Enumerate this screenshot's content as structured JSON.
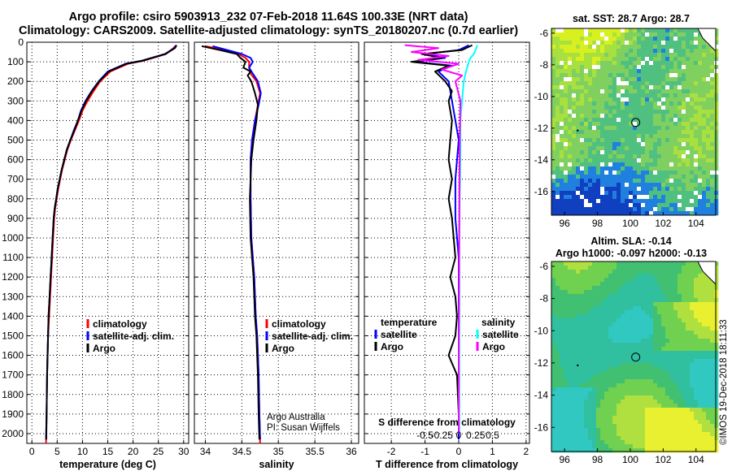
{
  "header": {
    "line1": "Argo profile: csiro 5903913_232 07-Feb-2018 11.64S 100.33E (NRT data)",
    "line2": "Climatology: CARS2009. Satellite-adjusted climatology: synTS_20180207.nc (0.7d earlier)"
  },
  "colors": {
    "argo": "#000000",
    "climatology": "#ff0000",
    "satellite": "#0000ff",
    "sat_salinity": "#00ffff",
    "argo_salinity": "#ff00ff"
  },
  "chart_data": [
    {
      "type": "line",
      "id": "temperature",
      "xlabel": "temperature (deg C)",
      "ylabel": "",
      "xlim": [
        -1,
        31
      ],
      "ylim": [
        2050,
        0
      ],
      "xticks": [
        0,
        5,
        10,
        15,
        20,
        25,
        30
      ],
      "yticks": [
        0,
        100,
        200,
        300,
        400,
        500,
        600,
        700,
        800,
        900,
        1000,
        1100,
        1200,
        1300,
        1400,
        1500,
        1600,
        1700,
        1800,
        1900,
        2000
      ],
      "grid": true,
      "legend": {
        "position": "lower-center",
        "entries": [
          "climatology",
          "satellite-adj. clim.",
          "Argo"
        ]
      },
      "series": [
        {
          "name": "climatology",
          "color": "#ff0000",
          "x": [
            28.3,
            28.0,
            26.5,
            22.0,
            19.0,
            15.5,
            13.5,
            12.2,
            11.0,
            10.0,
            9.3,
            8.5,
            7.7,
            7.0,
            6.5,
            6.0,
            5.6,
            5.2,
            4.9,
            4.6,
            4.4,
            4.2,
            4.0,
            3.8,
            3.6,
            3.4,
            3.2,
            3.0,
            2.9,
            2.8
          ],
          "y": [
            20,
            30,
            60,
            95,
            110,
            150,
            200,
            250,
            300,
            350,
            400,
            450,
            500,
            550,
            600,
            650,
            700,
            750,
            800,
            850,
            900,
            1000,
            1100,
            1200,
            1300,
            1400,
            1500,
            1700,
            1900,
            2050
          ]
        },
        {
          "name": "satellite-adj. clim.",
          "color": "#0000ff",
          "x": [
            28.5,
            28.2,
            26.3,
            21.6,
            18.5,
            15.0,
            13.2,
            11.8,
            10.6,
            9.7,
            9.1,
            8.3,
            7.6,
            6.9,
            6.4,
            5.9,
            5.5,
            5.1,
            4.8,
            4.5,
            4.3,
            4.1,
            3.9,
            3.7,
            3.5,
            3.3,
            3.2,
            3.0,
            2.9,
            2.8
          ],
          "y": [
            15,
            30,
            60,
            95,
            110,
            150,
            200,
            250,
            300,
            350,
            400,
            450,
            500,
            550,
            600,
            650,
            700,
            750,
            800,
            850,
            900,
            1000,
            1100,
            1200,
            1300,
            1400,
            1500,
            1700,
            1900,
            2030
          ]
        },
        {
          "name": "Argo",
          "color": "#000000",
          "x": [
            28.6,
            28.3,
            26.4,
            21.8,
            18.7,
            15.2,
            13.3,
            11.9,
            10.7,
            9.8,
            9.1,
            8.4,
            7.6,
            6.9,
            6.4,
            5.9,
            5.5,
            5.1,
            4.8,
            4.5,
            4.3,
            4.1,
            3.9,
            3.7,
            3.5,
            3.3,
            3.2,
            3.0,
            2.9,
            2.85
          ],
          "y": [
            15,
            30,
            60,
            95,
            110,
            150,
            200,
            250,
            300,
            350,
            400,
            450,
            500,
            550,
            600,
            650,
            700,
            750,
            800,
            850,
            900,
            1000,
            1100,
            1200,
            1300,
            1400,
            1500,
            1700,
            1900,
            2030
          ]
        }
      ]
    },
    {
      "type": "line",
      "id": "salinity",
      "xlabel": "salinity",
      "xlim": [
        33.85,
        36.1
      ],
      "ylim": [
        2050,
        0
      ],
      "xticks": [
        34,
        34.5,
        35,
        35.5,
        36
      ],
      "grid": true,
      "legend": {
        "position": "lower-right",
        "entries": [
          "climatology",
          "satellite-adj. clim.",
          "Argo"
        ]
      },
      "annotation": [
        "Argo Australia",
        "PI: Susan Wijffels"
      ],
      "series": [
        {
          "name": "climatology",
          "color": "#ff0000",
          "x": [
            34.0,
            34.28,
            34.45,
            34.55,
            34.6,
            34.6,
            34.62,
            34.7,
            34.75,
            34.72,
            34.68,
            34.64,
            34.62,
            34.62,
            34.63,
            34.65,
            34.67,
            34.69,
            34.71,
            34.72,
            34.73,
            34.74,
            34.75
          ],
          "y": [
            20,
            40,
            60,
            80,
            100,
            130,
            160,
            200,
            260,
            320,
            400,
            500,
            600,
            800,
            1000,
            1100,
            1200,
            1400,
            1500,
            1600,
            1700,
            1900,
            2050
          ]
        },
        {
          "name": "satellite-adj. clim.",
          "color": "#0000ff",
          "x": [
            34.1,
            34.3,
            34.5,
            34.62,
            34.65,
            34.6,
            34.65,
            34.72,
            34.76,
            34.73,
            34.68,
            34.64,
            34.62,
            34.62,
            34.63,
            34.65,
            34.67,
            34.69,
            34.71,
            34.72,
            34.73,
            34.74,
            34.75
          ],
          "y": [
            20,
            40,
            60,
            80,
            100,
            130,
            160,
            200,
            260,
            320,
            400,
            500,
            600,
            800,
            1000,
            1100,
            1200,
            1400,
            1500,
            1600,
            1700,
            1900,
            2030
          ]
        },
        {
          "name": "Argo",
          "color": "#000000",
          "x": [
            33.95,
            34.2,
            34.43,
            34.48,
            34.55,
            34.52,
            34.62,
            34.58,
            34.63,
            34.68,
            34.72,
            34.7,
            34.66,
            34.63,
            34.61,
            34.62,
            34.64,
            34.66,
            34.68,
            34.7,
            34.72,
            34.73,
            34.74
          ],
          "y": [
            20,
            40,
            60,
            80,
            100,
            130,
            150,
            170,
            200,
            260,
            320,
            400,
            500,
            600,
            800,
            1000,
            1100,
            1200,
            1400,
            1500,
            1700,
            1900,
            2030
          ]
        }
      ]
    },
    {
      "type": "line",
      "id": "difference",
      "xlabel": "T difference from climatology",
      "xlabel_top": "S difference from climatology",
      "xlim": [
        -2.8,
        2.1
      ],
      "ylim": [
        2050,
        0
      ],
      "xticks": [
        -2,
        -1,
        0,
        1,
        2
      ],
      "xticks_top": [
        -0.5,
        -0.25,
        0,
        0.25,
        0.5
      ],
      "xticklabels_top": [
        "-0.5",
        "-0.25",
        "0",
        "0.25",
        "0.5"
      ],
      "grid": true,
      "legend": {
        "left_title": "temperature",
        "left_entries": [
          "satellite",
          "Argo"
        ],
        "right_title": "salinity",
        "right_entries": [
          "satellite",
          "Argo"
        ]
      },
      "series": [
        {
          "name": "satellite",
          "group": "temperature",
          "color": "#0000ff",
          "x": [
            0.3,
            0.0,
            -1.0,
            -0.4,
            -1.3,
            -0.2,
            -0.6,
            -0.3,
            -0.2,
            -0.1,
            0.0,
            -0.1,
            -0.1,
            0.0,
            0.0,
            0.0,
            0.0,
            0.0,
            0.0,
            0.0
          ],
          "y": [
            15,
            40,
            60,
            80,
            100,
            120,
            150,
            200,
            300,
            400,
            500,
            700,
            900,
            1100,
            1300,
            1500,
            1700,
            1800,
            1900,
            2030
          ]
        },
        {
          "name": "Argo",
          "group": "temperature",
          "color": "#000000",
          "x": [
            0.4,
            0.1,
            -1.1,
            -0.5,
            -1.4,
            -0.3,
            -0.7,
            -0.4,
            -0.2,
            -0.3,
            -0.2,
            -0.25,
            -0.3,
            -0.2,
            -0.3,
            -0.2,
            -0.15,
            -0.1,
            -0.25,
            -0.1,
            -0.05,
            -0.1,
            -0.3,
            -0.05,
            0.0
          ],
          "y": [
            15,
            40,
            60,
            80,
            100,
            120,
            150,
            200,
            250,
            300,
            400,
            500,
            600,
            700,
            800,
            900,
            1000,
            1100,
            1200,
            1300,
            1400,
            1500,
            1600,
            1700,
            1900
          ]
        },
        {
          "name": "satellite",
          "group": "salinity",
          "color": "#00ffff",
          "x": [
            0.55,
            0.5,
            0.45,
            0.35,
            0.3,
            0.25,
            0.2,
            0.15,
            0.1,
            0.05,
            0.05,
            0.03,
            0.02,
            0.02,
            0.02,
            0.02
          ],
          "y": [
            15,
            40,
            60,
            80,
            100,
            130,
            160,
            200,
            300,
            400,
            600,
            800,
            1000,
            1300,
            1600,
            2000
          ]
        },
        {
          "name": "Argo",
          "group": "salinity",
          "color": "#ff00ff",
          "x": [
            -1.6,
            -0.6,
            -1.4,
            -0.3,
            -1.2,
            0.0,
            -0.5,
            0.1,
            -0.1,
            0.05,
            0.03,
            0.02,
            0.01,
            0.0,
            0.0
          ],
          "y": [
            15,
            30,
            50,
            70,
            90,
            110,
            140,
            170,
            200,
            300,
            500,
            800,
            1200,
            1600,
            2000
          ]
        }
      ]
    },
    {
      "type": "heatmap",
      "id": "sst-map",
      "title": "sat. SST: 28.7 Argo: 28.7",
      "xlim": [
        95.2,
        105.2
      ],
      "ylim": [
        -17.5,
        -5.7
      ],
      "xticks": [
        96,
        98,
        100,
        102,
        104
      ],
      "yticks": [
        -6,
        -8,
        -10,
        -12,
        -14,
        -16
      ],
      "marker": {
        "lon": 100.33,
        "lat": -11.64
      }
    },
    {
      "type": "heatmap",
      "id": "sla-map",
      "title_lines": [
        "Altim. SLA: -0.14",
        "Argo h1000: -0.097 h2000: -0.13"
      ],
      "xlim": [
        95.2,
        105.2
      ],
      "ylim": [
        -17.5,
        -5.7
      ],
      "xticks": [
        96,
        98,
        100,
        102,
        104
      ],
      "yticks": [
        -6,
        -8,
        -10,
        -12,
        -14,
        -16
      ],
      "marker": {
        "lon": 100.33,
        "lat": -11.64
      }
    }
  ],
  "credit": "©IMOS 19-Dec-2018 18:11:33"
}
